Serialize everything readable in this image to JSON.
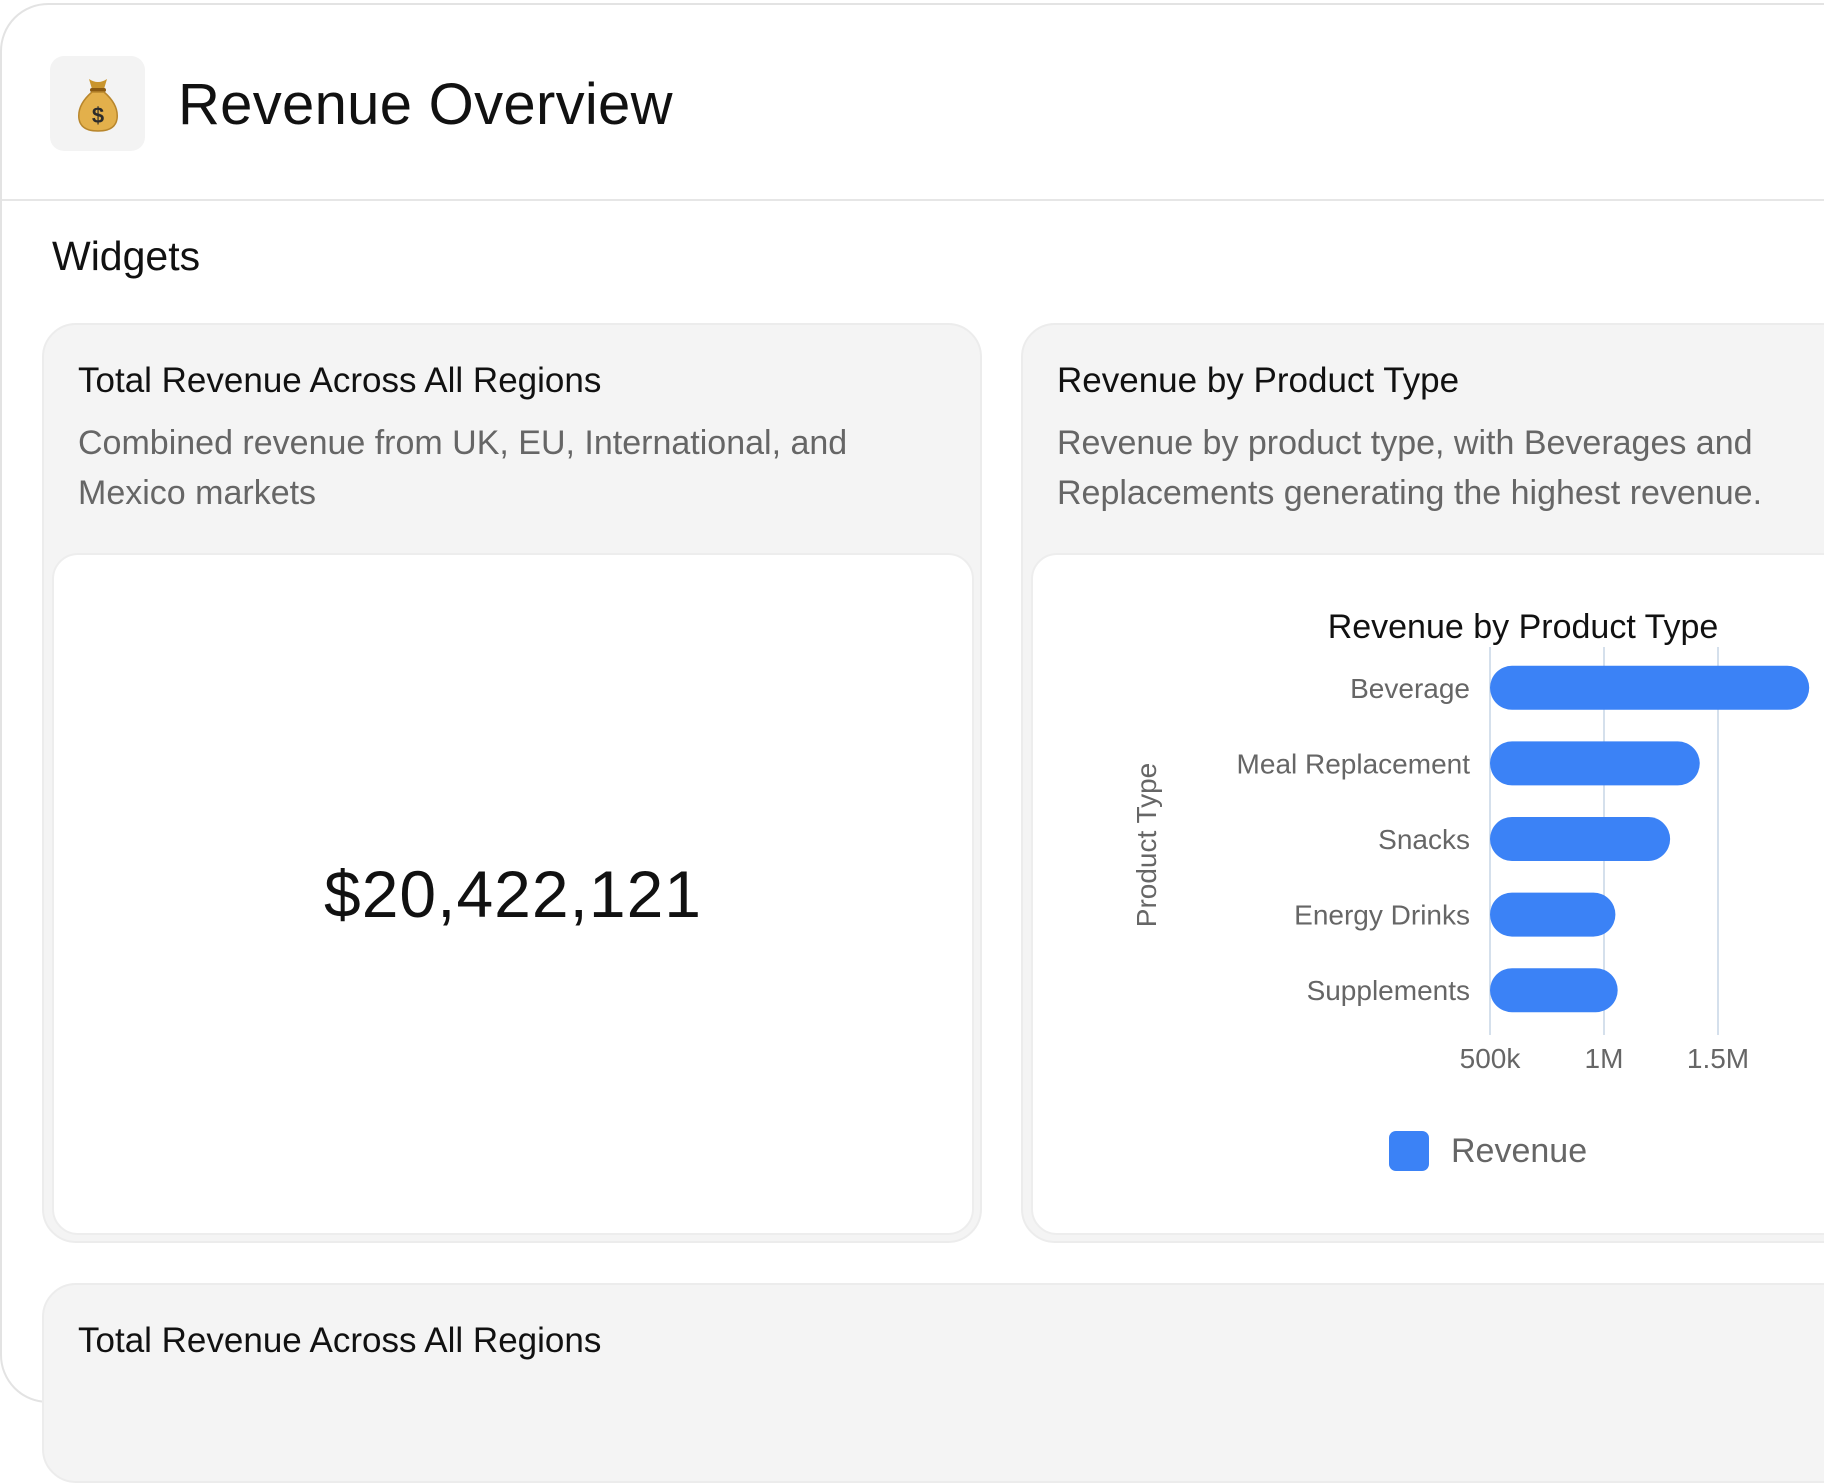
{
  "header": {
    "title": "Revenue Overview",
    "icon": "money-bag-icon"
  },
  "section": {
    "title": "Widgets"
  },
  "widgets": [
    {
      "title": "Total Revenue Across All Regions",
      "description": "Combined revenue from UK, EU, International, and Mexico markets",
      "value": "$20,422,121"
    },
    {
      "title": "Revenue by Product Type",
      "description": "Revenue by product type, with Beverages and Replacements generating the highest revenue."
    },
    {
      "title": "Total Revenue Across All Regions"
    }
  ],
  "chart_data": {
    "type": "bar",
    "orientation": "horizontal",
    "title": "Revenue by Product Type",
    "ylabel": "Product Type",
    "xlabel": "",
    "categories": [
      "Beverage",
      "Meal Replacement",
      "Snacks",
      "Energy Drinks",
      "Supplements"
    ],
    "series": [
      {
        "name": "Revenue",
        "values": [
          1900000,
          1420000,
          1290000,
          1050000,
          1060000
        ],
        "color": "#3b82f6"
      }
    ],
    "xticks": [
      {
        "value": 500000,
        "label": "500k"
      },
      {
        "value": 1000000,
        "label": "1M"
      },
      {
        "value": 1500000,
        "label": "1.5M"
      }
    ],
    "xlim": [
      500000,
      2000000
    ],
    "grid": true,
    "legend": "bottom"
  }
}
